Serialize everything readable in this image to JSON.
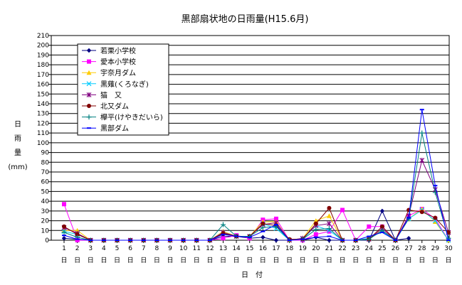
{
  "chart_data": {
    "type": "line",
    "title": "黒部扇状地の日雨量(H15.6月)",
    "xlabel": "日　付",
    "ylabel_chars": [
      "日",
      "雨",
      "量",
      "(mm)"
    ],
    "x_ticks": [
      "1",
      "2",
      "3",
      "4",
      "5",
      "6",
      "7",
      "8",
      "9",
      "10",
      "11",
      "12",
      "13",
      "14",
      "15",
      "16",
      "17",
      "18",
      "19",
      "20",
      "21",
      "22",
      "23",
      "24",
      "25",
      "26",
      "27",
      "28",
      "29",
      "30"
    ],
    "x_unit_char": "日",
    "ylim": [
      0,
      210
    ],
    "y_step": 10,
    "grid": true,
    "legend_position": "top-left",
    "series": [
      {
        "name": "若栗小学校",
        "color": "#000080",
        "marker": "diamond",
        "values": [
          2,
          1,
          0,
          0,
          0,
          0,
          0,
          0,
          0,
          0,
          0,
          0,
          4,
          4,
          2,
          3,
          0,
          0,
          0,
          3,
          0,
          0,
          0,
          0,
          30,
          0,
          2,
          null,
          null,
          null
        ]
      },
      {
        "name": "愛本小学校",
        "color": "#ff00ff",
        "marker": "square",
        "values": [
          37,
          0,
          0,
          0,
          0,
          0,
          0,
          0,
          0,
          0,
          0,
          0,
          2,
          5,
          2,
          21,
          22,
          0,
          0,
          6,
          9,
          31,
          0,
          14,
          14,
          0,
          25,
          32,
          22,
          0
        ]
      },
      {
        "name": "宇奈月ダム",
        "color": "#ffcc00",
        "marker": "triangle",
        "values": [
          10,
          10,
          0,
          0,
          0,
          0,
          0,
          0,
          0,
          0,
          0,
          0,
          9,
          4,
          4,
          19,
          19,
          0,
          2,
          20,
          25,
          0,
          0,
          2,
          10,
          0,
          22,
          32,
          19,
          0
        ]
      },
      {
        "name": "黒薙(くろなぎ)",
        "color": "#00ccff",
        "marker": "x",
        "values": [
          9,
          6,
          0,
          0,
          0,
          0,
          0,
          0,
          0,
          0,
          0,
          0,
          8,
          4,
          4,
          17,
          12,
          0,
          1,
          15,
          10,
          0,
          0,
          2,
          9,
          0,
          22,
          31,
          20,
          0
        ]
      },
      {
        "name": "猫　又",
        "color": "#800080",
        "marker": "star",
        "values": [
          13,
          7,
          0,
          0,
          0,
          0,
          0,
          0,
          0,
          0,
          0,
          0,
          8,
          4,
          4,
          16,
          18,
          0,
          2,
          15,
          17,
          0,
          0,
          1,
          12,
          0,
          25,
          82,
          52,
          8
        ]
      },
      {
        "name": "北又ダム",
        "color": "#800000",
        "marker": "circle",
        "values": [
          14,
          6,
          0,
          0,
          0,
          0,
          0,
          0,
          0,
          0,
          0,
          0,
          7,
          4,
          4,
          17,
          15,
          1,
          1,
          17,
          33,
          0,
          0,
          1,
          14,
          0,
          31,
          29,
          23,
          8
        ]
      },
      {
        "name": "欅平(けやきだいら)",
        "color": "#008080",
        "marker": "plus",
        "values": [
          8,
          3,
          0,
          0,
          0,
          0,
          0,
          0,
          0,
          0,
          0,
          0,
          16,
          4,
          4,
          13,
          14,
          0,
          1,
          11,
          12,
          0,
          0,
          1,
          10,
          0,
          22,
          110,
          49,
          2
        ]
      },
      {
        "name": "黒部ダム",
        "color": "#0000ff",
        "marker": "dash",
        "values": [
          5,
          1,
          0,
          0,
          0,
          0,
          0,
          0,
          0,
          0,
          0,
          0,
          6,
          4,
          3,
          9,
          16,
          0,
          1,
          3,
          4,
          0,
          0,
          4,
          8,
          0,
          23,
          134,
          56,
          0
        ]
      }
    ]
  }
}
